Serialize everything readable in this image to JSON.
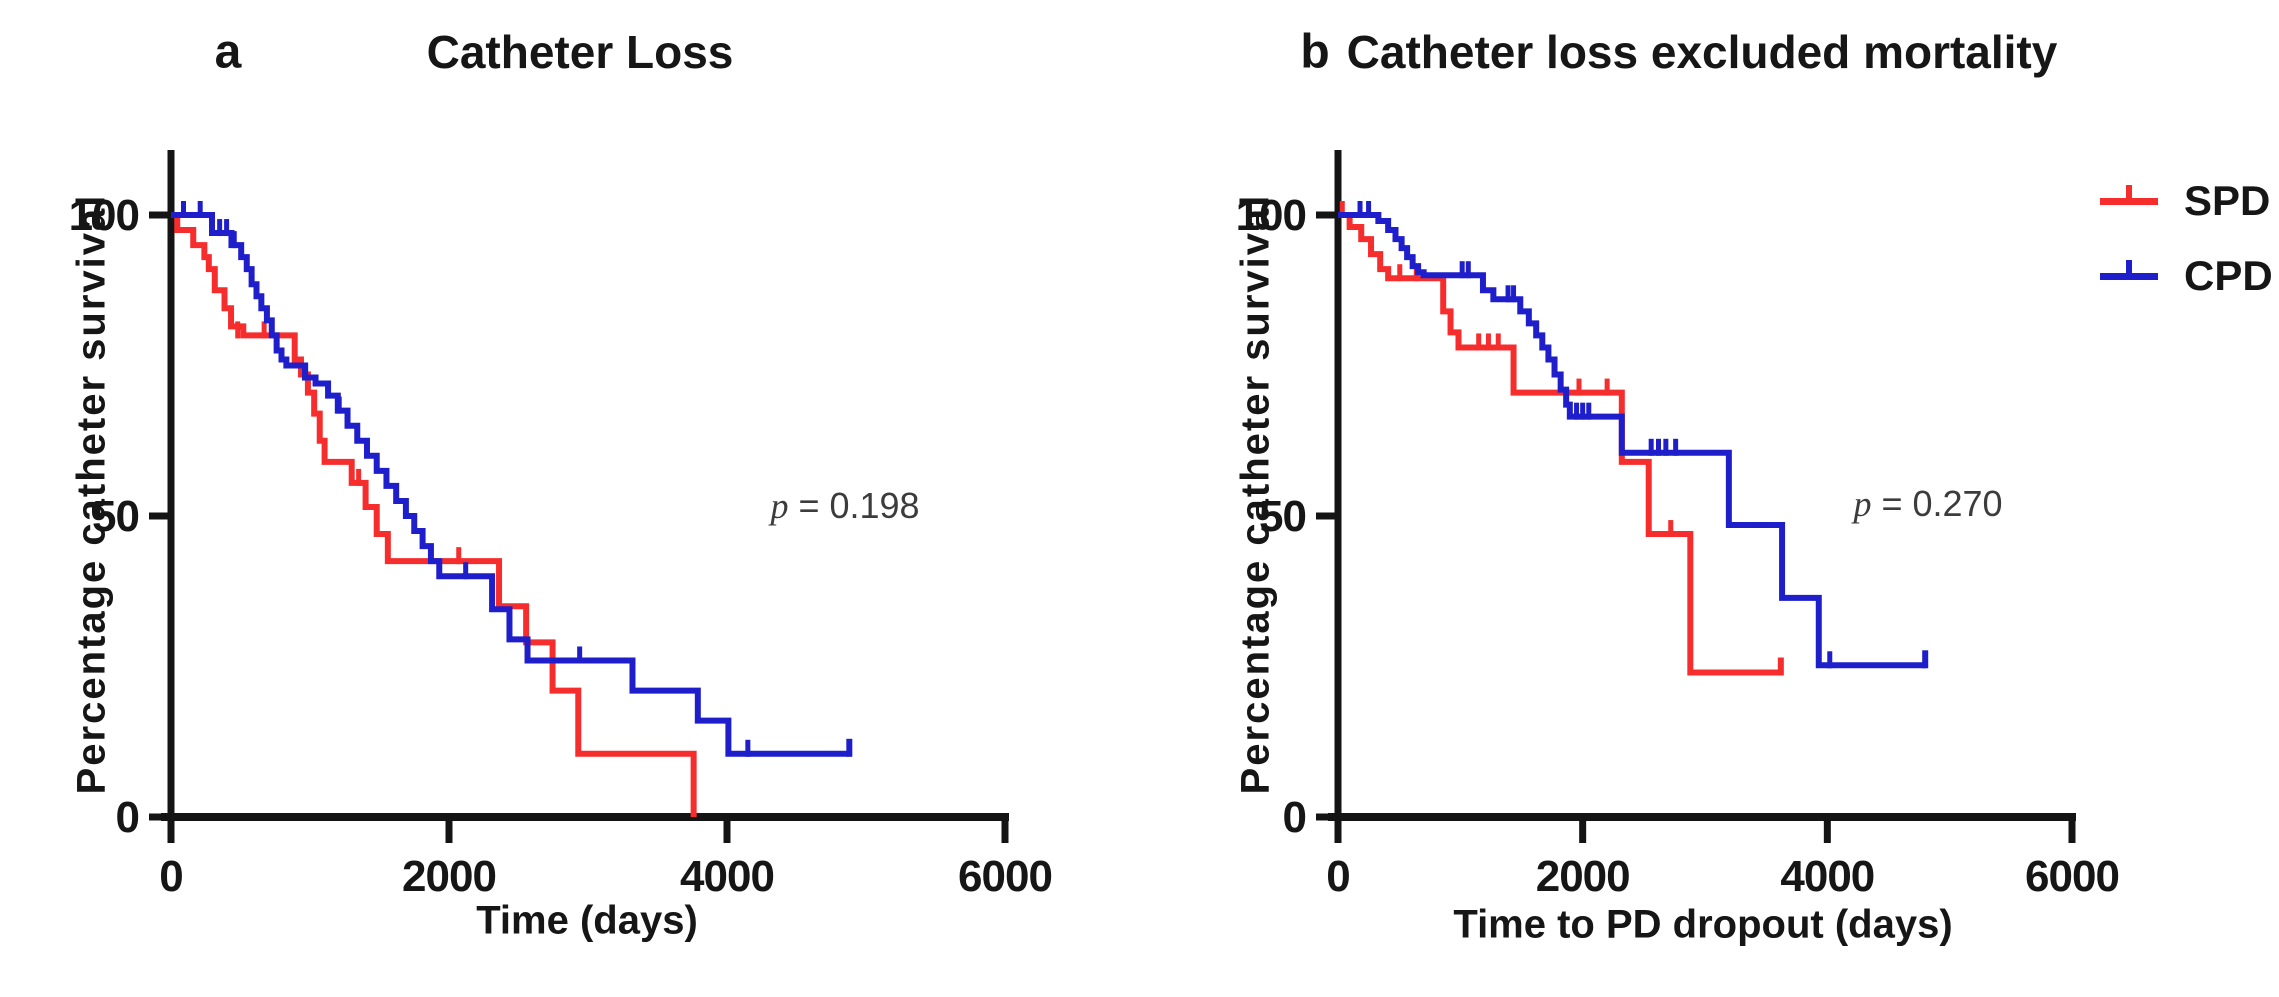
{
  "figure": {
    "background": "#ffffff",
    "axis_color": "#141414",
    "p_text_color": "#3c3c3c",
    "legend": {
      "position": "top-right",
      "items": [
        {
          "label": "SPD",
          "color": "#f62d2d"
        },
        {
          "label": "CPD",
          "color": "#1e1ecb"
        }
      ]
    }
  },
  "chart_data": [
    {
      "type": "line",
      "step": true,
      "grid": false,
      "panel_label": "a",
      "title": "Catheter Loss",
      "xlabel": "Time (days)",
      "ylabel": "Percentage catheter survival",
      "xlim": [
        0,
        6000
      ],
      "ylim": [
        0,
        100
      ],
      "x_ticks": [
        0,
        2000,
        4000,
        6000
      ],
      "y_ticks": [
        0,
        50,
        100
      ],
      "p_value": {
        "symbol": "p",
        "rest": " = 0.198",
        "value": 0.198
      },
      "series": [
        {
          "name": "SPD",
          "color": "#f62d2d",
          "start": [
            0,
            100
          ],
          "steps": [
            [
              45,
              97.5
            ],
            [
              160,
              95
            ],
            [
              240,
              93
            ],
            [
              272,
              91
            ],
            [
              315,
              87.5
            ],
            [
              385,
              84.5
            ],
            [
              432,
              81.5
            ],
            [
              520,
              80
            ],
            [
              890,
              76
            ],
            [
              935,
              73.5
            ],
            [
              985,
              70.5
            ],
            [
              1030,
              67
            ],
            [
              1070,
              62.5
            ],
            [
              1105,
              59
            ],
            [
              1300,
              55.5
            ],
            [
              1400,
              51.5
            ],
            [
              1480,
              47
            ],
            [
              1560,
              42.5
            ],
            [
              2360,
              35
            ],
            [
              2555,
              29
            ],
            [
              2745,
              21
            ],
            [
              2930,
              10.5
            ],
            [
              3760,
              0
            ]
          ],
          "end": 3760,
          "end_censor": false,
          "censors": [
            [
              480,
              80
            ],
            [
              670,
              80
            ],
            [
              1350,
              55.5
            ],
            [
              2070,
              42.5
            ]
          ]
        },
        {
          "name": "CPD",
          "color": "#1e1ecb",
          "start": [
            0,
            100
          ],
          "steps": [
            [
              295,
              97
            ],
            [
              435,
              95
            ],
            [
              505,
              93
            ],
            [
              545,
              91
            ],
            [
              580,
              88.5
            ],
            [
              615,
              86.5
            ],
            [
              650,
              84.5
            ],
            [
              690,
              82.5
            ],
            [
              725,
              80
            ],
            [
              760,
              77.5
            ],
            [
              795,
              76
            ],
            [
              830,
              75
            ],
            [
              965,
              73
            ],
            [
              1040,
              72
            ],
            [
              1130,
              70
            ],
            [
              1200,
              67.5
            ],
            [
              1270,
              65
            ],
            [
              1340,
              62.5
            ],
            [
              1410,
              60
            ],
            [
              1480,
              57.5
            ],
            [
              1550,
              55
            ],
            [
              1620,
              52.5
            ],
            [
              1690,
              50
            ],
            [
              1750,
              47.5
            ],
            [
              1810,
              45
            ],
            [
              1870,
              42.5
            ],
            [
              1930,
              40
            ],
            [
              2310,
              34.5
            ],
            [
              2435,
              29.5
            ],
            [
              2565,
              26
            ],
            [
              3320,
              21
            ],
            [
              3790,
              16
            ],
            [
              4010,
              10.5
            ]
          ],
          "end": 4880,
          "end_censor": true,
          "censors": [
            [
              90,
              100
            ],
            [
              210,
              100
            ],
            [
              350,
              97
            ],
            [
              400,
              97
            ],
            [
              455,
              95
            ],
            [
              960,
              73
            ],
            [
              1210,
              67.5
            ],
            [
              2120,
              40
            ],
            [
              2940,
              26
            ],
            [
              4150,
              10.5
            ]
          ]
        }
      ]
    },
    {
      "type": "line",
      "step": true,
      "grid": false,
      "panel_label": "b",
      "title": "Catheter loss excluded mortality",
      "xlabel": "Time to PD dropout (days)",
      "ylabel": "Percentage catheter survival",
      "xlim": [
        0,
        6000
      ],
      "ylim": [
        0,
        100
      ],
      "x_ticks": [
        0,
        2000,
        4000,
        6000
      ],
      "y_ticks": [
        0,
        50,
        100
      ],
      "p_value": {
        "symbol": "p",
        "rest": " = 0.270",
        "value": 0.27
      },
      "series": [
        {
          "name": "SPD",
          "color": "#f62d2d",
          "start": [
            0,
            100
          ],
          "steps": [
            [
              95,
              98
            ],
            [
              190,
              96
            ],
            [
              270,
              93.5
            ],
            [
              345,
              91
            ],
            [
              410,
              89.5
            ],
            [
              860,
              84
            ],
            [
              920,
              80.5
            ],
            [
              985,
              78
            ],
            [
              1435,
              70.5
            ],
            [
              2320,
              59
            ],
            [
              2540,
              47
            ],
            [
              2880,
              24
            ]
          ],
          "end": 3620,
          "end_censor": true,
          "censors": [
            [
              35,
              100
            ],
            [
              505,
              89.5
            ],
            [
              640,
              89.5
            ],
            [
              1150,
              78
            ],
            [
              1230,
              78
            ],
            [
              1310,
              78
            ],
            [
              1970,
              70.5
            ],
            [
              2200,
              70.5
            ],
            [
              2720,
              47
            ]
          ]
        },
        {
          "name": "CPD",
          "color": "#1e1ecb",
          "start": [
            0,
            100
          ],
          "steps": [
            [
              330,
              99
            ],
            [
              410,
              97.5
            ],
            [
              470,
              96
            ],
            [
              520,
              94.5
            ],
            [
              565,
              93
            ],
            [
              610,
              91.5
            ],
            [
              655,
              90.5
            ],
            [
              700,
              90
            ],
            [
              1185,
              87.5
            ],
            [
              1270,
              86
            ],
            [
              1490,
              84
            ],
            [
              1560,
              82
            ],
            [
              1620,
              80
            ],
            [
              1670,
              78
            ],
            [
              1720,
              76
            ],
            [
              1770,
              73.5
            ],
            [
              1820,
              71
            ],
            [
              1865,
              68.5
            ],
            [
              1895,
              66.5
            ],
            [
              2320,
              60.5
            ],
            [
              3195,
              48.5
            ],
            [
              3630,
              36.4
            ],
            [
              3930,
              25.2
            ]
          ],
          "end": 4800,
          "end_censor": true,
          "censors": [
            [
              180,
              100
            ],
            [
              250,
              100
            ],
            [
              1015,
              90
            ],
            [
              1065,
              90
            ],
            [
              1390,
              86
            ],
            [
              1435,
              86
            ],
            [
              1950,
              66.5
            ],
            [
              2000,
              66.5
            ],
            [
              2050,
              66.5
            ],
            [
              2560,
              60.5
            ],
            [
              2620,
              60.5
            ],
            [
              2680,
              60.5
            ],
            [
              2760,
              60.5
            ],
            [
              4020,
              25.2
            ]
          ]
        }
      ]
    }
  ]
}
